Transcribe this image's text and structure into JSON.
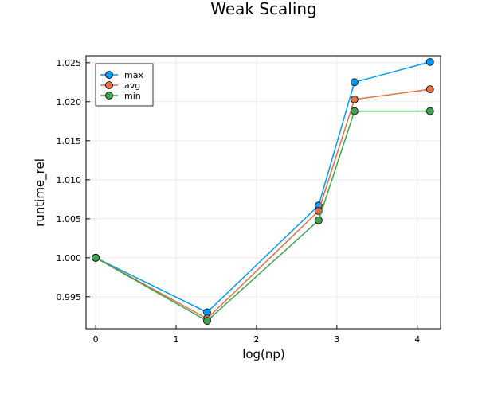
{
  "chart_data": {
    "type": "line",
    "title": "Weak Scaling",
    "xlabel": "log(np)",
    "ylabel": "runtime_rel",
    "x": [
      0,
      1.386,
      2.773,
      3.219,
      4.159
    ],
    "series": [
      {
        "name": "max",
        "color": "#009AFA",
        "values": [
          1.0,
          0.993,
          1.0067,
          1.0225,
          1.0251
        ]
      },
      {
        "name": "avg",
        "color": "#E36F47",
        "values": [
          1.0,
          0.9922,
          1.006,
          1.0203,
          1.0216
        ]
      },
      {
        "name": "min",
        "color": "#3EA44E",
        "values": [
          1.0,
          0.9919,
          1.0048,
          1.0188,
          1.0188
        ]
      }
    ],
    "xlim": [
      -0.12,
      4.29
    ],
    "ylim": [
      0.9909,
      1.0259
    ],
    "xticks": [
      0,
      1,
      2,
      3,
      4
    ],
    "xtick_labels": [
      "0",
      "1",
      "2",
      "3",
      "4"
    ],
    "yticks": [
      0.995,
      1.0,
      1.005,
      1.01,
      1.015,
      1.02,
      1.025
    ],
    "ytick_labels": [
      "0.995",
      "1.000",
      "1.005",
      "1.010",
      "1.015",
      "1.020",
      "1.025"
    ],
    "grid": true,
    "legend_position": "top-left"
  }
}
